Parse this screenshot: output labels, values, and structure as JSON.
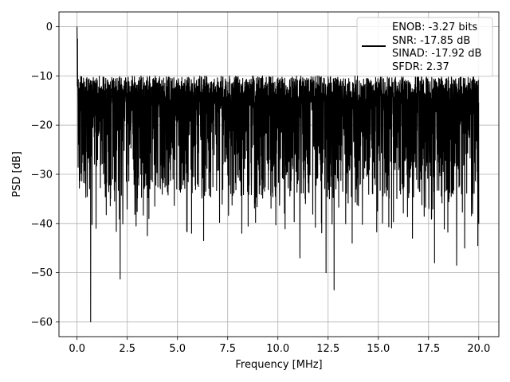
{
  "chart_data": {
    "type": "line",
    "xlabel": "Frequency [MHz]",
    "ylabel": "PSD [dB]",
    "xlim": [
      -0.9,
      21.0
    ],
    "ylim": [
      -63.0,
      3.0
    ],
    "x_ticks": [
      0.0,
      2.5,
      5.0,
      7.5,
      10.0,
      12.5,
      15.0,
      17.5,
      20.0
    ],
    "x_tick_labels": [
      "0.0",
      "2.5",
      "5.0",
      "7.5",
      "10.0",
      "12.5",
      "15.0",
      "17.5",
      "20.0"
    ],
    "y_ticks": [
      0,
      -10,
      -20,
      -30,
      -40,
      -50,
      -60
    ],
    "y_tick_labels": [
      "0",
      "−10",
      "−20",
      "−30",
      "−40",
      "−50",
      "−60"
    ],
    "grid": true,
    "legend_position": "top-right",
    "series": [
      {
        "color": "#000000",
        "description": "Dense noise-floor power spectral density from 0 to 20 MHz; peak 0 dB at 0 MHz, floor oscillating roughly between -10 and -35 dB with dips down to about -60 dB",
        "x_range": [
          0.0,
          20.0
        ],
        "peak": {
          "x": 0.0,
          "y": 0.0
        },
        "typical_max": -10,
        "typical_min": -35,
        "notable_minima": [
          {
            "x": 0.68,
            "y": -60.0
          },
          {
            "x": 2.15,
            "y": -51.3
          },
          {
            "x": 12.8,
            "y": -53.5
          },
          {
            "x": 12.4,
            "y": -50.0
          },
          {
            "x": 18.9,
            "y": -48.5
          },
          {
            "x": 17.8,
            "y": -48.0
          },
          {
            "x": 11.1,
            "y": -47.0
          },
          {
            "x": 0.95,
            "y": -41.0
          },
          {
            "x": 6.3,
            "y": -43.5
          },
          {
            "x": 13.7,
            "y": -44.0
          },
          {
            "x": 19.3,
            "y": -45.0
          },
          {
            "x": 19.95,
            "y": -44.5
          },
          {
            "x": 5.7,
            "y": -42.0
          },
          {
            "x": 16.7,
            "y": -43.0
          },
          {
            "x": 3.5,
            "y": -42.5
          },
          {
            "x": 8.2,
            "y": -42.0
          }
        ]
      }
    ],
    "legend": {
      "entries": [
        "ENOB: -3.27 bits",
        "SNR: -17.85 dB",
        "SINAD: -17.92 dB",
        "SFDR: 2.37"
      ]
    }
  }
}
